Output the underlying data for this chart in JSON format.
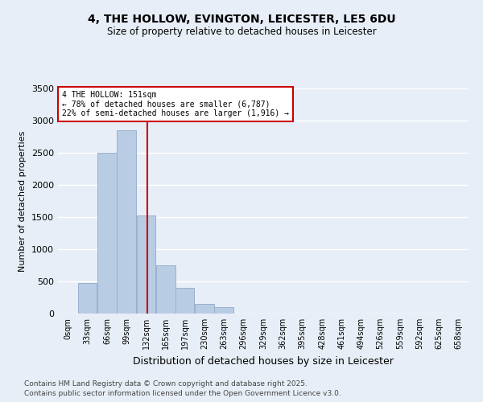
{
  "title": "4, THE HOLLOW, EVINGTON, LEICESTER, LE5 6DU",
  "subtitle": "Size of property relative to detached houses in Leicester",
  "xlabel": "Distribution of detached houses by size in Leicester",
  "ylabel": "Number of detached properties",
  "bin_labels": [
    "0sqm",
    "33sqm",
    "66sqm",
    "99sqm",
    "132sqm",
    "165sqm",
    "197sqm",
    "230sqm",
    "263sqm",
    "296sqm",
    "329sqm",
    "362sqm",
    "395sqm",
    "428sqm",
    "461sqm",
    "494sqm",
    "526sqm",
    "559sqm",
    "592sqm",
    "625sqm",
    "658sqm"
  ],
  "bar_values": [
    0,
    470,
    2500,
    2850,
    1530,
    750,
    400,
    150,
    100,
    0,
    0,
    0,
    0,
    0,
    0,
    0,
    0,
    0,
    0,
    0,
    0
  ],
  "bar_color": "#b8cce4",
  "bar_edgecolor": "#9ab0cc",
  "bg_color": "#e8eef7",
  "grid_color": "#ffffff",
  "vline_value": 151,
  "vline_color": "#cc0000",
  "annotation_title": "4 THE HOLLOW: 151sqm",
  "annotation_line1": "← 78% of detached houses are smaller (6,787)",
  "annotation_line2": "22% of semi-detached houses are larger (1,916) →",
  "annotation_box_color": "#cc0000",
  "ylim": [
    0,
    3500
  ],
  "yticks": [
    0,
    500,
    1000,
    1500,
    2000,
    2500,
    3000,
    3500
  ],
  "footnote1": "Contains HM Land Registry data © Crown copyright and database right 2025.",
  "footnote2": "Contains public sector information licensed under the Open Government Licence v3.0.",
  "bin_width": 33,
  "bin_starts": [
    0,
    33,
    66,
    99,
    132,
    165,
    197,
    230,
    263,
    296,
    329,
    362,
    395,
    428,
    461,
    494,
    526,
    559,
    592,
    625,
    658
  ]
}
